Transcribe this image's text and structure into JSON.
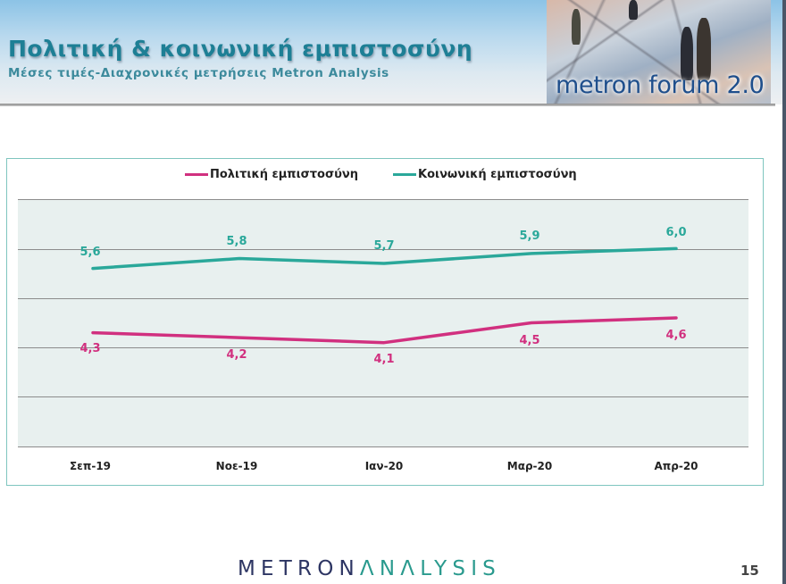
{
  "header": {
    "title": "Πολιτική & κοινωνική εμπιστοσύνη",
    "subtitle": "Μέσες τιμές-Διαχρονικές μετρήσεις Metron Analysis",
    "forum_badge": "metron forum 2.0"
  },
  "footer": {
    "logo_part1": "METRON",
    "logo_part2": "ΛNΛLYSIS",
    "page_number": "15"
  },
  "colors": {
    "political": "#d1307f",
    "social": "#2aa89a",
    "title": "#1d7f95",
    "frame": "#7fc5bf",
    "plot_bg": "#e8f0ef"
  },
  "chart_data": {
    "type": "line",
    "title": "Πολιτική & κοινωνική εμπιστοσύνη",
    "subtitle": "Μέσες τιμές-Διαχρονικές μετρήσεις Metron Analysis",
    "categories": [
      "Σεπ-19",
      "Νοε-19",
      "Ιαν-20",
      "Μαρ-20",
      "Απρ-20"
    ],
    "series": [
      {
        "name": "Πολιτική εμπιστοσύνη",
        "color": "#d1307f",
        "values": [
          4.3,
          4.2,
          4.1,
          4.5,
          4.6
        ],
        "labels": [
          "4,3",
          "4,2",
          "4,1",
          "4,5",
          "4,6"
        ]
      },
      {
        "name": "Κοινωνική εμπιστοσύνη",
        "color": "#2aa89a",
        "values": [
          5.6,
          5.8,
          5.7,
          5.9,
          6.0
        ],
        "labels": [
          "5,6",
          "5,8",
          "5,7",
          "5,9",
          "6,0"
        ]
      }
    ],
    "xlabel": "",
    "ylabel": "",
    "ylim": [
      2,
      7
    ],
    "y_axis_visible": false,
    "grid": true,
    "legend_position": "top"
  }
}
